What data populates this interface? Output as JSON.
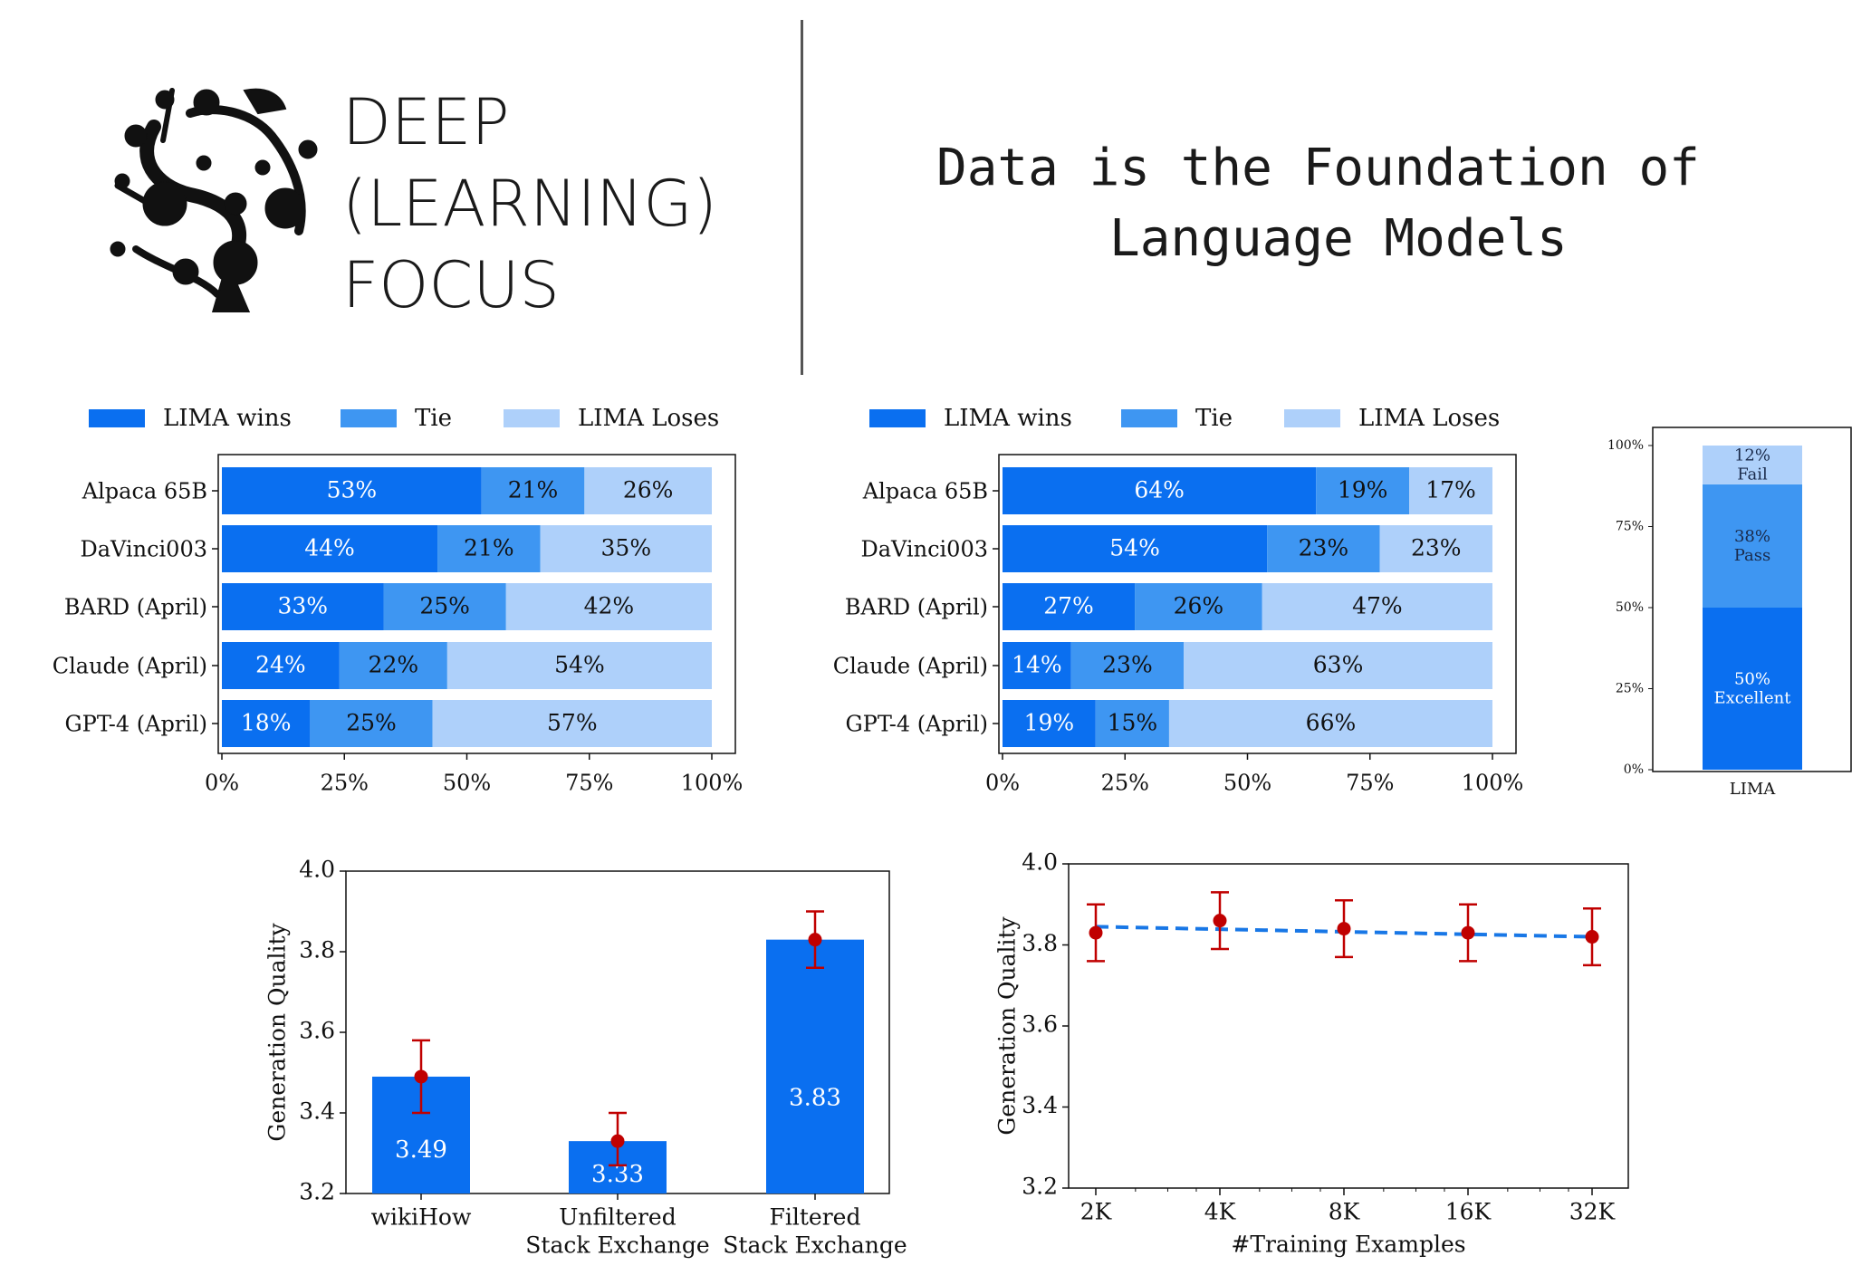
{
  "brand": {
    "line1": "DEEP",
    "line2": "(LEARNING)",
    "line3": "FOCUS"
  },
  "headline": {
    "line1": "Data is the Foundation of",
    "line2": "Language Models"
  },
  "colors": {
    "dark": "#0a6ff0",
    "mid": "#3e96f2",
    "light": "#aed0fa",
    "marker": "#c00000",
    "line": "#1877e6"
  },
  "chart_data": [
    {
      "type": "bar",
      "orientation": "horizontal-stacked",
      "categories": [
        "Alpaca 65B",
        "DaVinci003",
        "BARD (April)",
        "Claude (April)",
        "GPT-4 (April)"
      ],
      "series": [
        {
          "name": "LIMA wins",
          "values": [
            53,
            44,
            33,
            24,
            18
          ],
          "labels": [
            "53%",
            "44%",
            "33%",
            "24%",
            "18%"
          ]
        },
        {
          "name": "Tie",
          "values": [
            21,
            21,
            25,
            22,
            25
          ],
          "labels": [
            "21%",
            "21%",
            "25%",
            "22%",
            "25%"
          ]
        },
        {
          "name": "LIMA Loses",
          "values": [
            26,
            35,
            42,
            54,
            57
          ],
          "labels": [
            "26%",
            "35%",
            "42%",
            "54%",
            "57%"
          ]
        }
      ],
      "xticks": [
        "0%",
        "25%",
        "50%",
        "75%",
        "100%"
      ],
      "xlim": [
        0,
        100
      ],
      "legend": "top"
    },
    {
      "type": "bar",
      "orientation": "horizontal-stacked",
      "categories": [
        "Alpaca 65B",
        "DaVinci003",
        "BARD (April)",
        "Claude (April)",
        "GPT-4 (April)"
      ],
      "series": [
        {
          "name": "LIMA wins",
          "values": [
            64,
            54,
            27,
            14,
            19
          ],
          "labels": [
            "64%",
            "54%",
            "27%",
            "14%",
            "19%"
          ]
        },
        {
          "name": "Tie",
          "values": [
            19,
            23,
            26,
            23,
            15
          ],
          "labels": [
            "19%",
            "23%",
            "26%",
            "23%",
            "15%"
          ]
        },
        {
          "name": "LIMA Loses",
          "values": [
            17,
            23,
            47,
            63,
            66
          ],
          "labels": [
            "17%",
            "23%",
            "47%",
            "63%",
            "66%"
          ]
        }
      ],
      "xticks": [
        "0%",
        "25%",
        "50%",
        "75%",
        "100%"
      ],
      "xlim": [
        0,
        100
      ],
      "legend": "top"
    },
    {
      "type": "bar",
      "orientation": "vertical-stacked",
      "categories": [
        "LIMA"
      ],
      "series": [
        {
          "label_pct": "50%",
          "label_name": "Excellent",
          "value": 50
        },
        {
          "label_pct": "38%",
          "label_name": "Pass",
          "value": 38
        },
        {
          "label_pct": "12%",
          "label_name": "Fail",
          "value": 12
        }
      ],
      "yticks": [
        "0%",
        "25%",
        "50%",
        "75%",
        "100%"
      ],
      "ylim": [
        0,
        100
      ]
    },
    {
      "type": "bar",
      "categories": [
        "wikiHow",
        "Unfiltered\nStack Exchange",
        "Filtered\nStack Exchange"
      ],
      "values": [
        3.49,
        3.33,
        3.83
      ],
      "value_labels": [
        "3.49",
        "3.33",
        "3.83"
      ],
      "error": [
        [
          3.4,
          3.58
        ],
        [
          3.27,
          3.4
        ],
        [
          3.76,
          3.9
        ]
      ],
      "ylabel": "Generation Quality",
      "yticks": [
        "3.2",
        "3.4",
        "3.6",
        "3.8",
        "4.0"
      ],
      "ylim": [
        3.2,
        4.0
      ]
    },
    {
      "type": "line",
      "x": [
        "2K",
        "4K",
        "8K",
        "16K",
        "32K"
      ],
      "y": [
        3.83,
        3.86,
        3.84,
        3.83,
        3.82
      ],
      "error": [
        [
          3.76,
          3.9
        ],
        [
          3.79,
          3.93
        ],
        [
          3.77,
          3.91
        ],
        [
          3.76,
          3.9
        ],
        [
          3.75,
          3.89
        ]
      ],
      "trend": [
        3.845,
        3.82
      ],
      "xlabel": "#Training Examples",
      "ylabel": "Generation Quality",
      "yticks": [
        "3.2",
        "3.4",
        "3.6",
        "3.8",
        "4.0"
      ],
      "ylim": [
        3.2,
        4.0
      ],
      "xscale": "log"
    }
  ]
}
